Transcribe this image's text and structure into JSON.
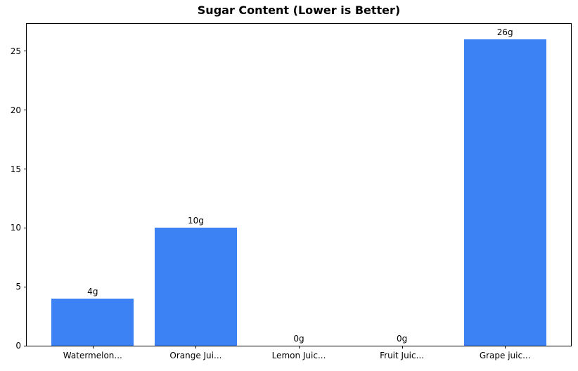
{
  "chart_data": {
    "type": "bar",
    "title": "Sugar Content (Lower is Better)",
    "categories": [
      "Watermelon...",
      "Orange Jui...",
      "Lemon Juic...",
      "Fruit Juic...",
      "Grape juic..."
    ],
    "values": [
      4,
      10,
      0,
      0,
      26
    ],
    "bar_labels": [
      "4g",
      "10g",
      "0g",
      "0g",
      "26g"
    ],
    "y_ticks": [
      0,
      5,
      10,
      15,
      20,
      25
    ],
    "ylim": [
      0,
      27.32
    ],
    "xlim": [
      -0.64,
      4.64
    ],
    "bar_width": 0.8,
    "bar_color": "#3d82f4",
    "axis_color": "#000000",
    "background_color": "#ffffff",
    "xlabel": "",
    "ylabel": "",
    "grid": false,
    "legend": "none"
  }
}
